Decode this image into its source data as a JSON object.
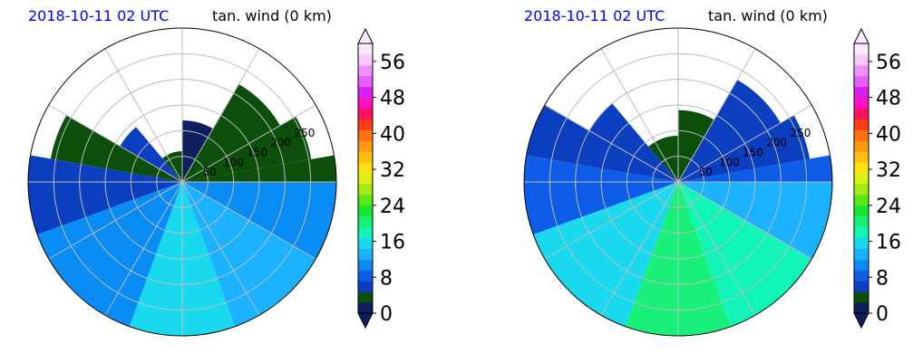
{
  "chart_data": [
    {
      "type": "heatmap",
      "subtype": "polar-filled-contour",
      "time_label": "2018-10-11 02 UTC",
      "var_label": "tan. wind (0 km)",
      "radius_ticks": [
        50,
        100,
        150,
        200,
        250
      ],
      "radius_max": 300,
      "colorbar": {
        "ticks": [
          0,
          8,
          16,
          24,
          32,
          40,
          48,
          56
        ],
        "min": 0,
        "max": 60,
        "extend": "both"
      },
      "sectors": [
        {
          "az": [
            0,
            10
          ],
          "r": 300,
          "v": 4
        },
        {
          "az": [
            10,
            30
          ],
          "r": 255,
          "v": 3
        },
        {
          "az": [
            30,
            60
          ],
          "r": 220,
          "v": 3
        },
        {
          "az": [
            60,
            90
          ],
          "r": 120,
          "v": 2
        },
        {
          "az": [
            90,
            130
          ],
          "r": 60,
          "v": 4
        },
        {
          "az": [
            130,
            150
          ],
          "r": 140,
          "v": 5
        },
        {
          "az": [
            150,
            170
          ],
          "r": 260,
          "v": 4
        },
        {
          "az": [
            170,
            200
          ],
          "r": 300,
          "v": 6
        },
        {
          "az": [
            200,
            250
          ],
          "r": 300,
          "v": 11
        },
        {
          "az": [
            250,
            290
          ],
          "r": 300,
          "v": 15
        },
        {
          "az": [
            290,
            330
          ],
          "r": 300,
          "v": 14
        },
        {
          "az": [
            330,
            360
          ],
          "r": 300,
          "v": 10
        }
      ]
    },
    {
      "type": "heatmap",
      "subtype": "polar-filled-contour",
      "time_label": "2018-10-11 02 UTC",
      "var_label": "tan. wind (0 km)",
      "radius_ticks": [
        50,
        100,
        150,
        200,
        250
      ],
      "radius_max": 300,
      "colorbar": {
        "ticks": [
          0,
          8,
          16,
          24,
          32,
          40,
          48,
          56
        ],
        "min": 0,
        "max": 60,
        "extend": "both"
      },
      "sectors": [
        {
          "az": [
            0,
            10
          ],
          "r": 300,
          "v": 8
        },
        {
          "az": [
            10,
            30
          ],
          "r": 260,
          "v": 6
        },
        {
          "az": [
            30,
            60
          ],
          "r": 230,
          "v": 5
        },
        {
          "az": [
            60,
            90
          ],
          "r": 140,
          "v": 4
        },
        {
          "az": [
            90,
            130
          ],
          "r": 90,
          "v": 4
        },
        {
          "az": [
            130,
            150
          ],
          "r": 200,
          "v": 5
        },
        {
          "az": [
            150,
            170
          ],
          "r": 300,
          "v": 6
        },
        {
          "az": [
            170,
            200
          ],
          "r": 300,
          "v": 9
        },
        {
          "az": [
            200,
            250
          ],
          "r": 300,
          "v": 16
        },
        {
          "az": [
            250,
            290
          ],
          "r": 300,
          "v": 20
        },
        {
          "az": [
            290,
            330
          ],
          "r": 300,
          "v": 19
        },
        {
          "az": [
            330,
            360
          ],
          "r": 300,
          "v": 14
        }
      ]
    }
  ],
  "colors": {
    "bands": [
      "#0d1f5c",
      "#0b4f0b",
      "#0b3fbf",
      "#0d5de8",
      "#0a8cf5",
      "#1bb3ff",
      "#19d9ef",
      "#12f5b8",
      "#19f07a",
      "#15e830",
      "#58e812",
      "#9ded12",
      "#d8f012",
      "#ffe210",
      "#ffbf10",
      "#ff9810",
      "#ff7010",
      "#ff3c14",
      "#ff1060",
      "#ff10c0",
      "#d820f0",
      "#e660ff",
      "#f090ff",
      "#f8c8ff",
      "#fdeaff"
    ],
    "grid": "#bbbbbb"
  }
}
